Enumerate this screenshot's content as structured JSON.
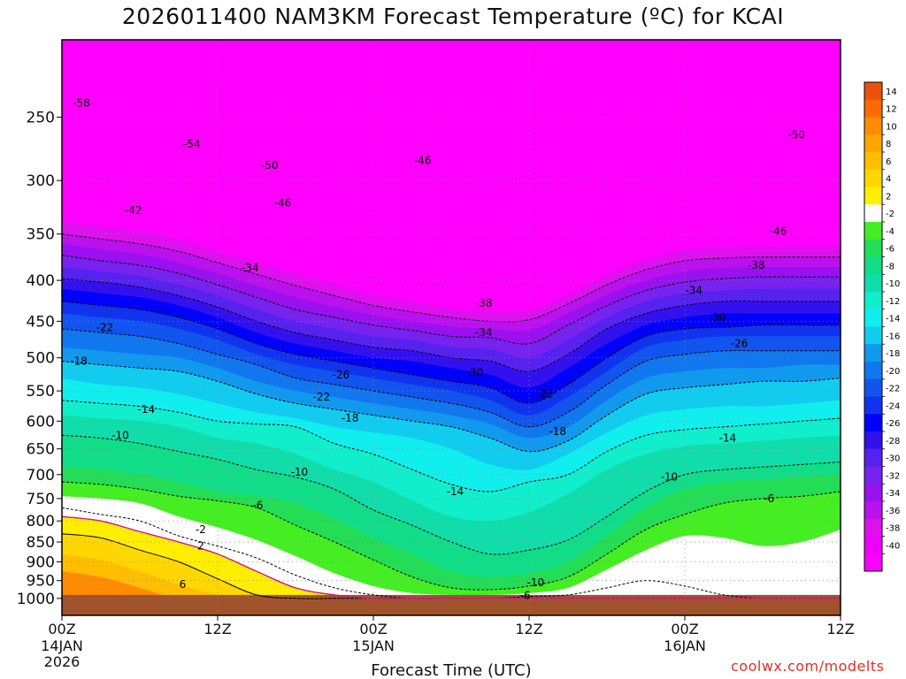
{
  "title": "2026011400 NAM3KM Forecast Temperature (ºC) for KCAI",
  "credit": "coolwx.com/modelts",
  "chart_data": {
    "type": "heatmap",
    "title": "2026011400 NAM3KM Forecast Temperature (ºC) for KCAI",
    "xlabel": "Forecast Time (UTC)",
    "ylabel": "",
    "y_scale": "log-pressure (inverted)",
    "ylim": [
      1050,
      200
    ],
    "xlim": [
      0,
      60
    ],
    "x_ticks": [
      {
        "hour": 0,
        "label": "00Z",
        "date": "14JAN",
        "year": "2026"
      },
      {
        "hour": 12,
        "label": "12Z",
        "date": "",
        "year": ""
      },
      {
        "hour": 24,
        "label": "00Z",
        "date": "15JAN",
        "year": ""
      },
      {
        "hour": 36,
        "label": "12Z",
        "date": "",
        "year": ""
      },
      {
        "hour": 48,
        "label": "00Z",
        "date": "16JAN",
        "year": ""
      },
      {
        "hour": 60,
        "label": "12Z",
        "date": "",
        "year": ""
      }
    ],
    "y_ticks": [
      250,
      300,
      350,
      400,
      450,
      500,
      550,
      600,
      650,
      700,
      750,
      800,
      850,
      900,
      950,
      1000
    ],
    "grid": true,
    "ground_level_hpa": 990,
    "ground_color": "#a0522d",
    "isotherm_profiles": [
      {
        "temp": 8,
        "p": [
          925,
          940,
          970,
          1000,
          1000,
          1000,
          1000,
          1000,
          1000,
          1000,
          1000,
          1000,
          1000,
          1000,
          1000,
          1000,
          1000,
          1000,
          1000,
          1000,
          1000
        ]
      },
      {
        "temp": 4,
        "p": [
          880,
          895,
          925,
          960,
          990,
          1000,
          1000,
          1000,
          1000,
          1000,
          1000,
          1000,
          1000,
          1000,
          1000,
          1000,
          1000,
          1000,
          1000,
          1000,
          1000
        ]
      },
      {
        "temp": 2,
        "p": [
          830,
          840,
          870,
          900,
          945,
          990,
          1000,
          1000,
          1000,
          1000,
          1000,
          1000,
          1000,
          1000,
          1000,
          1000,
          1000,
          1000,
          1000,
          1000,
          1000
        ]
      },
      {
        "temp": 0,
        "p": [
          790,
          800,
          825,
          850,
          880,
          925,
          970,
          990,
          1000,
          1000,
          1000,
          1000,
          1000,
          1000,
          1000,
          1000,
          1000,
          1000,
          1000,
          1000,
          1000
        ]
      },
      {
        "temp": -2,
        "p": [
          770,
          785,
          800,
          835,
          860,
          890,
          935,
          970,
          990,
          1000,
          1000,
          1000,
          995,
          990,
          970,
          950,
          965,
          990,
          1000,
          1000,
          1000
        ]
      },
      {
        "temp": -4,
        "p": [
          745,
          750,
          760,
          790,
          815,
          845,
          885,
          930,
          965,
          985,
          990,
          990,
          985,
          970,
          920,
          870,
          835,
          840,
          860,
          850,
          820
        ]
      },
      {
        "temp": -6,
        "p": [
          715,
          720,
          730,
          745,
          755,
          770,
          810,
          850,
          895,
          940,
          970,
          975,
          965,
          940,
          880,
          820,
          785,
          760,
          750,
          745,
          735
        ]
      },
      {
        "temp": -8,
        "p": [
          685,
          690,
          700,
          715,
          735,
          745,
          760,
          795,
          840,
          880,
          925,
          940,
          930,
          900,
          835,
          770,
          730,
          715,
          710,
          705,
          700
        ]
      },
      {
        "temp": -10,
        "p": [
          625,
          630,
          640,
          655,
          670,
          690,
          705,
          730,
          775,
          810,
          850,
          880,
          870,
          845,
          790,
          735,
          700,
          690,
          685,
          680,
          675
        ]
      },
      {
        "temp": -12,
        "p": [
          590,
          595,
          600,
          610,
          630,
          640,
          660,
          690,
          715,
          755,
          790,
          800,
          780,
          740,
          690,
          660,
          645,
          640,
          635,
          630,
          625
        ]
      },
      {
        "temp": -14,
        "p": [
          565,
          570,
          575,
          585,
          600,
          605,
          610,
          640,
          660,
          690,
          720,
          735,
          715,
          700,
          655,
          625,
          615,
          610,
          605,
          600,
          595
        ]
      },
      {
        "temp": -16,
        "p": [
          530,
          540,
          545,
          555,
          570,
          585,
          595,
          610,
          620,
          630,
          650,
          680,
          690,
          660,
          620,
          590,
          580,
          575,
          575,
          570,
          565
        ]
      },
      {
        "temp": -18,
        "p": [
          505,
          510,
          515,
          520,
          535,
          555,
          570,
          580,
          590,
          600,
          610,
          630,
          655,
          635,
          590,
          555,
          545,
          540,
          535,
          535,
          530
        ]
      },
      {
        "temp": -20,
        "p": [
          485,
          490,
          495,
          500,
          515,
          535,
          550,
          560,
          570,
          580,
          590,
          605,
          630,
          610,
          565,
          530,
          520,
          515,
          515,
          510,
          510
        ]
      },
      {
        "temp": -22,
        "p": [
          460,
          465,
          470,
          480,
          495,
          510,
          530,
          540,
          550,
          560,
          570,
          585,
          610,
          585,
          540,
          505,
          495,
          490,
          490,
          490,
          490
        ]
      },
      {
        "temp": -24,
        "p": [
          440,
          445,
          450,
          460,
          475,
          495,
          510,
          520,
          530,
          540,
          550,
          565,
          590,
          560,
          520,
          485,
          475,
          470,
          470,
          470,
          470
        ]
      },
      {
        "temp": -26,
        "p": [
          425,
          430,
          435,
          445,
          460,
          480,
          495,
          505,
          515,
          525,
          535,
          545,
          570,
          540,
          500,
          470,
          460,
          458,
          455,
          455,
          455
        ]
      },
      {
        "temp": -28,
        "p": [
          410,
          415,
          420,
          430,
          445,
          465,
          480,
          490,
          500,
          505,
          515,
          525,
          545,
          515,
          480,
          455,
          445,
          440,
          440,
          440,
          440
        ]
      },
      {
        "temp": -30,
        "p": [
          398,
          402,
          408,
          418,
          432,
          450,
          465,
          475,
          485,
          490,
          500,
          505,
          520,
          495,
          460,
          440,
          430,
          425,
          425,
          425,
          425
        ]
      },
      {
        "temp": -32,
        "p": [
          385,
          390,
          395,
          405,
          418,
          435,
          450,
          460,
          470,
          475,
          485,
          488,
          500,
          475,
          445,
          425,
          415,
          412,
          410,
          410,
          410
        ]
      },
      {
        "temp": -34,
        "p": [
          372,
          378,
          383,
          392,
          405,
          420,
          435,
          445,
          455,
          462,
          470,
          472,
          480,
          455,
          430,
          412,
          402,
          398,
          396,
          396,
          396
        ]
      },
      {
        "temp": -36,
        "p": [
          360,
          366,
          371,
          380,
          392,
          406,
          420,
          432,
          442,
          450,
          457,
          460,
          462,
          440,
          417,
          400,
          390,
          386,
          385,
          385,
          385
        ]
      },
      {
        "temp": -38,
        "p": [
          350,
          355,
          360,
          368,
          380,
          393,
          406,
          418,
          430,
          438,
          445,
          450,
          448,
          428,
          405,
          388,
          378,
          375,
          374,
          374,
          374
        ]
      },
      {
        "temp": -40,
        "p": [
          338,
          343,
          348,
          356,
          368,
          380,
          393,
          405,
          418,
          426,
          434,
          438,
          436,
          417,
          394,
          377,
          367,
          364,
          363,
          363,
          363
        ]
      }
    ],
    "colorbar": {
      "levels": [
        14,
        12,
        10,
        8,
        6,
        4,
        2,
        -2,
        -4,
        -6,
        -8,
        -10,
        -12,
        -14,
        -16,
        -18,
        -20,
        -22,
        -24,
        -26,
        -28,
        -30,
        -32,
        -34,
        -36,
        -38,
        -40
      ],
      "colors": [
        "#e8520a",
        "#ff6a00",
        "#ff8c00",
        "#ffa500",
        "#ffbe00",
        "#ffd700",
        "#ffee00",
        "#ffffff",
        "#44ee22",
        "#22dd55",
        "#11dd88",
        "#11ddaa",
        "#11eecc",
        "#11eeee",
        "#11ccee",
        "#1199ee",
        "#1177ee",
        "#1155ee",
        "#1133ee",
        "#0000ff",
        "#3311ee",
        "#5522ee",
        "#7722ee",
        "#9911ee",
        "#bb11ee",
        "#dd11ee",
        "#ee00ff",
        "#ff00ff"
      ]
    },
    "contour_labels": [
      {
        "hour": 1.5,
        "p": 240,
        "text": "-58"
      },
      {
        "hour": 10,
        "p": 270,
        "text": "-54"
      },
      {
        "hour": 16,
        "p": 287,
        "text": "-50"
      },
      {
        "hour": 17,
        "p": 320,
        "text": "-46"
      },
      {
        "hour": 5.5,
        "p": 327,
        "text": "-42"
      },
      {
        "hour": 14.5,
        "p": 386,
        "text": "-34"
      },
      {
        "hour": 3.3,
        "p": 458,
        "text": "-22"
      },
      {
        "hour": 1.3,
        "p": 505,
        "text": "-18"
      },
      {
        "hour": 6.5,
        "p": 580,
        "text": "-14"
      },
      {
        "hour": 4.5,
        "p": 625,
        "text": "-10"
      },
      {
        "hour": 27.8,
        "p": 283,
        "text": "-46"
      },
      {
        "hour": 32.5,
        "p": 427,
        "text": "-38"
      },
      {
        "hour": 32.5,
        "p": 465,
        "text": "-34"
      },
      {
        "hour": 31.8,
        "p": 522,
        "text": "-30"
      },
      {
        "hour": 21.5,
        "p": 525,
        "text": "-26"
      },
      {
        "hour": 20,
        "p": 560,
        "text": "-22"
      },
      {
        "hour": 22.2,
        "p": 595,
        "text": "-18"
      },
      {
        "hour": 18.3,
        "p": 695,
        "text": "-10"
      },
      {
        "hour": 30.3,
        "p": 735,
        "text": "-14"
      },
      {
        "hour": 15.1,
        "p": 765,
        "text": "-6"
      },
      {
        "hour": 10.7,
        "p": 820,
        "text": "-2"
      },
      {
        "hour": 10.7,
        "p": 860,
        "text": "2"
      },
      {
        "hour": 9.3,
        "p": 960,
        "text": "6"
      },
      {
        "hour": 37.2,
        "p": 555,
        "text": "-22"
      },
      {
        "hour": 38.2,
        "p": 618,
        "text": "-18"
      },
      {
        "hour": 36.5,
        "p": 955,
        "text": "-10"
      },
      {
        "hour": 35.7,
        "p": 992,
        "text": "-6"
      },
      {
        "hour": 56.6,
        "p": 263,
        "text": "-50"
      },
      {
        "hour": 55.2,
        "p": 347,
        "text": "-46"
      },
      {
        "hour": 53.5,
        "p": 383,
        "text": "-38"
      },
      {
        "hour": 48.7,
        "p": 412,
        "text": "-34"
      },
      {
        "hour": 50.5,
        "p": 445,
        "text": "-30"
      },
      {
        "hour": 52.2,
        "p": 480,
        "text": "-26"
      },
      {
        "hour": 51.3,
        "p": 630,
        "text": "-14"
      },
      {
        "hour": 46.8,
        "p": 705,
        "text": "-10"
      },
      {
        "hour": 54.5,
        "p": 750,
        "text": "-6"
      }
    ]
  }
}
